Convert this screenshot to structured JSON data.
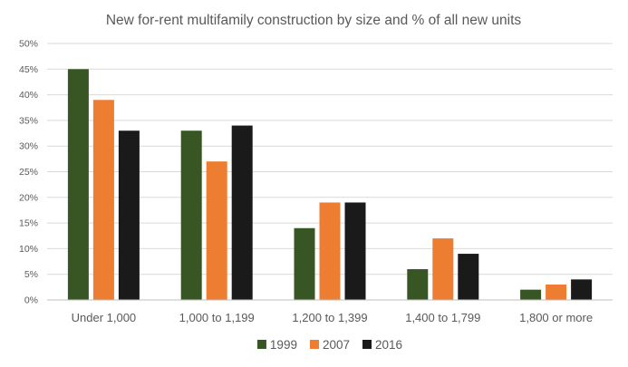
{
  "chart_data": {
    "type": "bar",
    "title": "New for-rent multifamily construction by size and % of all new units",
    "xlabel": "",
    "ylabel": "",
    "categories": [
      "Under 1,000",
      "1,000 to 1,199",
      "1,200 to 1,399",
      "1,400 to 1,799",
      "1,800 or more"
    ],
    "series": [
      {
        "name": "1999",
        "values": [
          45,
          33,
          14,
          6,
          2
        ],
        "color": "#375623"
      },
      {
        "name": "2007",
        "values": [
          39,
          27,
          19,
          12,
          3
        ],
        "color": "#ed7d31"
      },
      {
        "name": "2016",
        "values": [
          33,
          34,
          19,
          9,
          4
        ],
        "color": "#1a1a1a"
      }
    ],
    "ylim": [
      0,
      50
    ],
    "ytick_step": 5,
    "ytick_format": "percent",
    "ytick_labels": [
      "0%",
      "5%",
      "10%",
      "15%",
      "20%",
      "25%",
      "30%",
      "35%",
      "40%",
      "45%",
      "50%"
    ],
    "grid": true,
    "legend_position": "bottom"
  }
}
